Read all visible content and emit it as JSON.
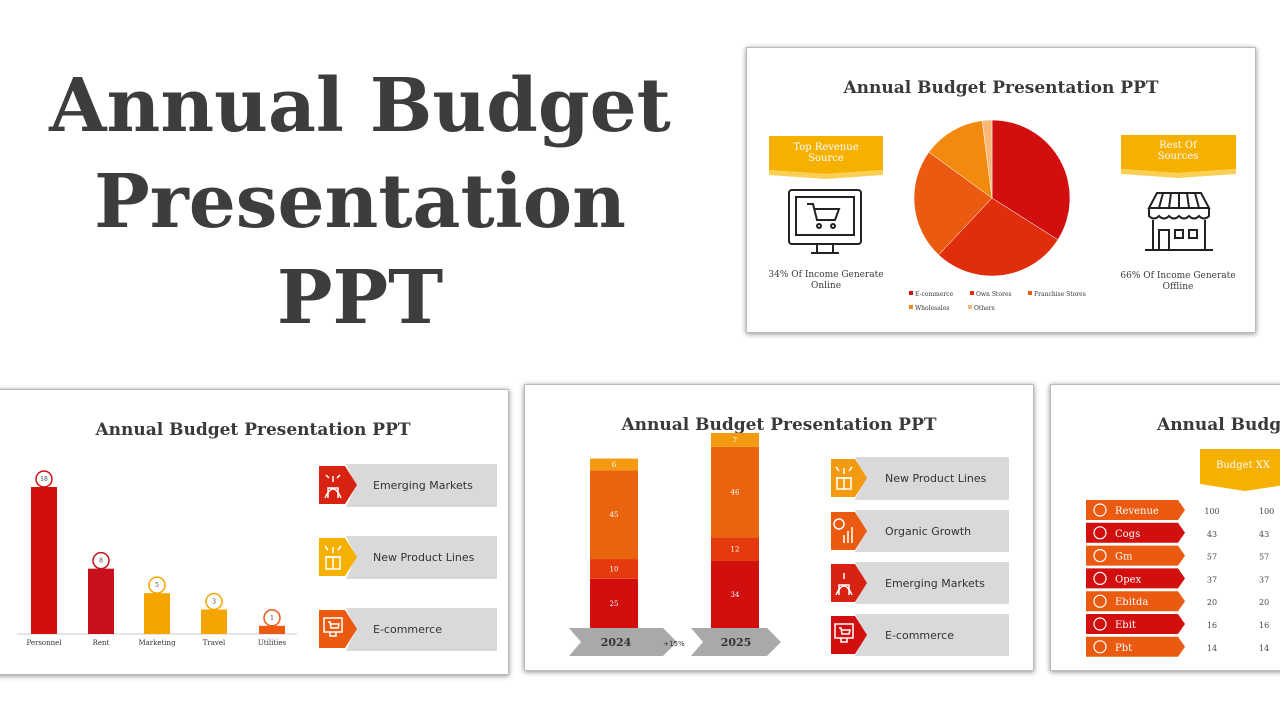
{
  "hero": {
    "line1": "Annual Budget",
    "line2": "Presentation",
    "line3": "PPT"
  },
  "colors": {
    "red": "#d10f0f",
    "darkred": "#c8171d",
    "orange": "#ea5a10",
    "amber": "#f6a400",
    "lightorange": "#f7c07a",
    "gray": "#d9d9d9",
    "text": "#3d3d3d"
  },
  "slide_pie": {
    "title": "Annual Budget Presentation PPT",
    "left_banner": "Top Revenue Source",
    "left_icon": "shopping-cart-monitor-icon",
    "left_caption": "34% Of Income Generate Online",
    "right_banner": "Rest Of Sources",
    "right_icon": "store-front-icon",
    "right_caption": "66% Of Income Generate Offline",
    "legend": [
      "E-commerce",
      "Own Stores",
      "Franchise Stores",
      "Wholesales",
      "Others"
    ]
  },
  "slide_bars": {
    "title": "Annual Budget Presentation PPT",
    "callouts": [
      {
        "label": "Emerging Markets",
        "icon": "globe-building-icon"
      },
      {
        "label": "New Product Lines",
        "icon": "gift-box-sparkle-icon"
      },
      {
        "label": "E-commerce",
        "icon": "shopping-cart-monitor-icon"
      }
    ]
  },
  "slide_stacked": {
    "title": "Annual Budget Presentation PPT",
    "year1": "2024",
    "year2": "2025",
    "growth": "+15%",
    "callouts": [
      {
        "label": "New Product Lines",
        "icon": "gift-box-sparkle-icon"
      },
      {
        "label": "Organic Growth",
        "icon": "dollar-growth-chart-icon"
      },
      {
        "label": "Emerging Markets",
        "icon": "globe-building-icon"
      },
      {
        "label": "E-commerce",
        "icon": "shopping-cart-monitor-icon"
      }
    ]
  },
  "slide_table": {
    "title": "Annual Budget Presentation PPT",
    "header": "Budget XX",
    "rows": [
      {
        "label": "Revenue",
        "v1": "100",
        "v2": "100"
      },
      {
        "label": "Cogs",
        "v1": "43",
        "v2": "43"
      },
      {
        "label": "Gm",
        "v1": "57",
        "v2": "57"
      },
      {
        "label": "Opex",
        "v1": "37",
        "v2": "37"
      },
      {
        "label": "Ebitda",
        "v1": "20",
        "v2": "20"
      },
      {
        "label": "Ebit",
        "v1": "16",
        "v2": "16"
      },
      {
        "label": "Pbt",
        "v1": "14",
        "v2": "14"
      }
    ]
  },
  "chart_data": [
    {
      "type": "pie",
      "categories": [
        "E-commerce",
        "Own Stores",
        "Franchise Stores",
        "Wholesales",
        "Others"
      ],
      "values": [
        34,
        28,
        23,
        13,
        2
      ],
      "colors": [
        "#d10f0f",
        "#e02d0c",
        "#ea5a10",
        "#f28a10",
        "#f7b878"
      ],
      "legend_position": "bottom"
    },
    {
      "type": "bar",
      "categories": [
        "Personnel",
        "Rent",
        "Marketing",
        "Travel",
        "Utilities"
      ],
      "values": [
        18,
        8,
        5,
        3,
        1
      ],
      "colors": [
        "#d10f0f",
        "#c8101a",
        "#f6a400",
        "#f6a400",
        "#ea5a10"
      ],
      "ylim": [
        0,
        18
      ]
    },
    {
      "type": "bar",
      "stacked": true,
      "categories": [
        "2024",
        "2025"
      ],
      "series": [
        {
          "values": [
            25,
            34
          ],
          "color": "#d10f0f"
        },
        {
          "values": [
            10,
            12
          ],
          "color": "#e43a0e"
        },
        {
          "values": [
            45,
            46
          ],
          "color": "#ea6410"
        },
        {
          "values": [
            6,
            7
          ],
          "color": "#f39a10"
        }
      ]
    }
  ]
}
